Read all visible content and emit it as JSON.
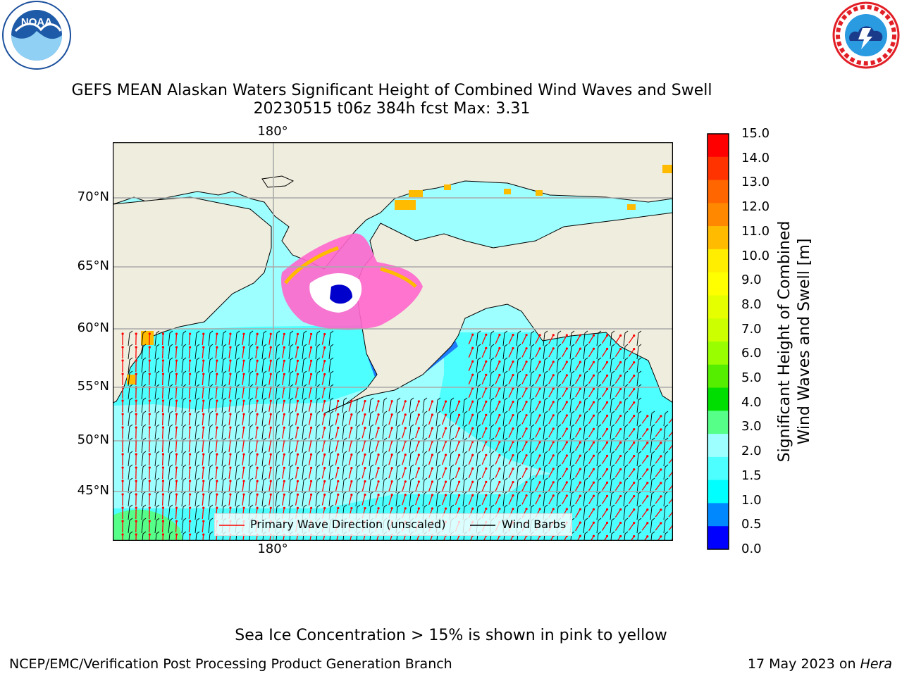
{
  "logos": {
    "noaa": {
      "label": "NOAA",
      "ring_text": "NATIONAL OCEANIC AND ATMOSPHERIC ADMINISTRATION · U.S. DEPARTMENT OF COMMERCE",
      "icon": "noaa-logo"
    },
    "nws": {
      "ring_text": "NATIONAL WEATHER SERVICE",
      "icon": "nws-logo"
    }
  },
  "title": {
    "line1": "GEFS MEAN Alaskan Waters Significant Height of Combined Wind Waves and Swell",
    "line2": "20230515 t06z 384h fcst   Max: 3.31"
  },
  "map": {
    "lat_labels": [
      "70°N",
      "65°N",
      "60°N",
      "55°N",
      "50°N",
      "45°N"
    ],
    "lon_label_top": "180°",
    "lon_label_bottom": "180°",
    "colors": {
      "land": "#efedde",
      "ocean_low": "#4dffff",
      "ocean_mid": "#9dffff",
      "ice": "#ff66cc"
    }
  },
  "legend": {
    "wave_label": "Primary Wave Direction (unscaled)",
    "wind_label": "Wind Barbs",
    "wave_color": "#ff0000",
    "wind_color": "#000000"
  },
  "colorbar": {
    "title_line1": "Significant Height of Combined",
    "title_line2": "Wind Waves and Swell [m]",
    "ticks": [
      "15.0",
      "14.0",
      "13.0",
      "12.0",
      "11.0",
      "10.0",
      "9.0",
      "8.0",
      "7.0",
      "6.0",
      "5.0",
      "4.0",
      "3.0",
      "2.0",
      "1.5",
      "1.0",
      "0.5",
      "0.0"
    ],
    "colors_top_to_bottom": [
      "#ff0000",
      "#ff3300",
      "#ff6600",
      "#ff8800",
      "#ffbb00",
      "#ffee00",
      "#ffff00",
      "#e6ff00",
      "#ccff00",
      "#99ff00",
      "#55ee00",
      "#00dd00",
      "#55ff88",
      "#9dffff",
      "#4dffff",
      "#00ffff",
      "#0088ff",
      "#0000ff"
    ]
  },
  "footer": {
    "ice_note": "Sea Ice Concentration > 15% is shown in pink to yellow",
    "branch": "NCEP/EMC/Verification Post Processing Product Generation Branch",
    "date": "17 May 2023 on ",
    "machine": "Hera"
  }
}
